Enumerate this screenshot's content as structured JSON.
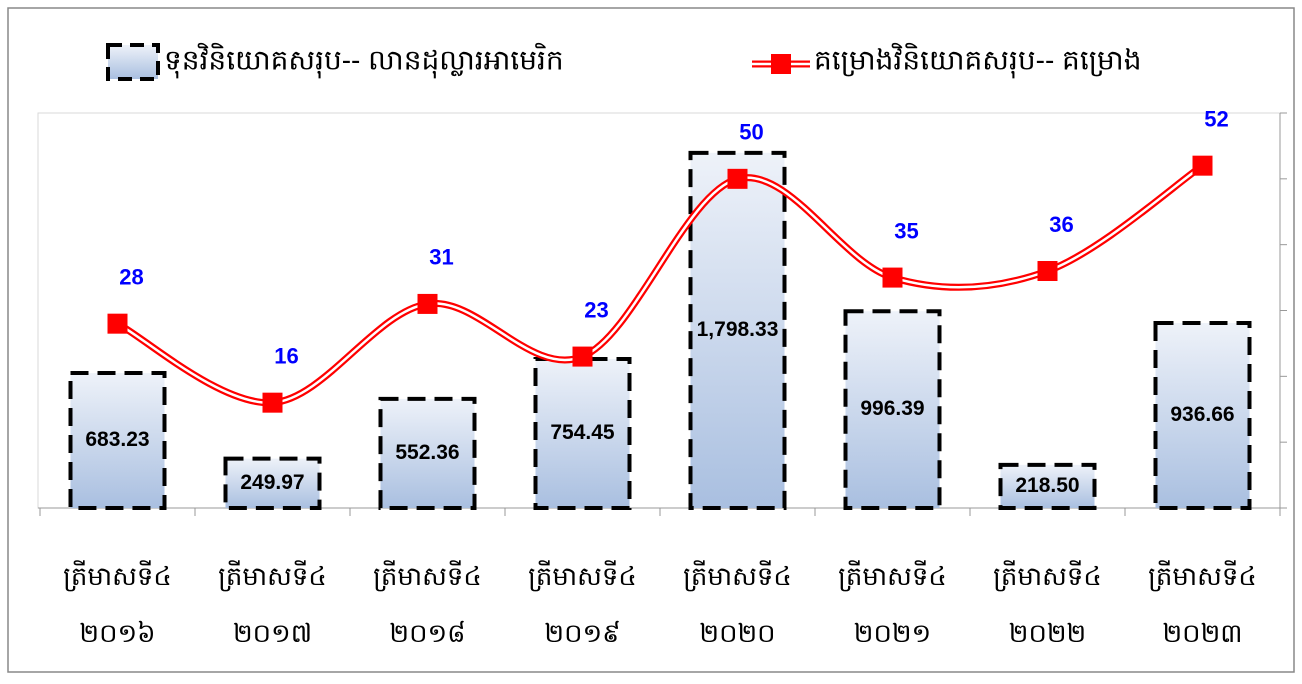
{
  "chart_data": {
    "type": "combo",
    "categories": [
      [
        "ត្រីមាសទី៤",
        "២០១៦"
      ],
      [
        "ត្រីមាសទី៤",
        "២០១៧"
      ],
      [
        "ត្រីមាសទី៤",
        "២០១៨"
      ],
      [
        "ត្រីមាសទី៤",
        "២០១៩"
      ],
      [
        "ត្រីមាសទី៤",
        "២០២០"
      ],
      [
        "ត្រីមាសទី៤",
        "២០២១"
      ],
      [
        "ត្រីមាសទី៤",
        "២០២២"
      ],
      [
        "ត្រីមាសទី៤",
        "២០២៣"
      ]
    ],
    "series": [
      {
        "name": "ទុនវិនិយោគសរុប-- លានដុល្លារអាមេរិក",
        "type": "bar",
        "color": "#b4c7e7",
        "values": [
          683.23,
          249.97,
          552.36,
          754.45,
          1798.33,
          996.39,
          218.5,
          936.66
        ],
        "value_labels": [
          "683.23",
          "249.97",
          "552.36",
          "754.45",
          "1,798.33",
          "996.39",
          "218.50",
          "936.66"
        ]
      },
      {
        "name": "គម្រោងវិនិយោគសរុប-- គម្រោង",
        "type": "line",
        "axis": "y2",
        "color": "#ff0000",
        "label_color": "#0000ff",
        "values": [
          28,
          16,
          31,
          23,
          50,
          35,
          36,
          52
        ]
      }
    ],
    "ylim": [
      0,
      2000
    ],
    "y2lim": [
      0,
      60
    ],
    "y2ticks": [
      0,
      10,
      20,
      30,
      40,
      50,
      60
    ]
  }
}
